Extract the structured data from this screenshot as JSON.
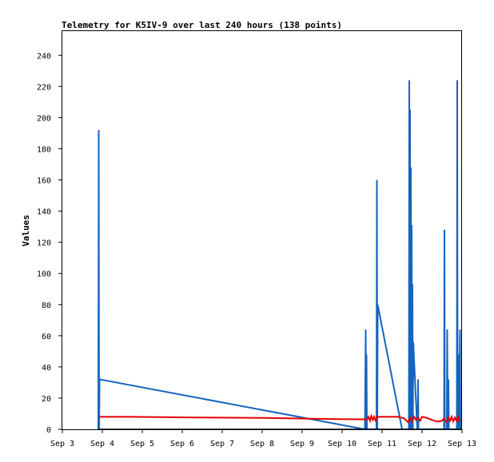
{
  "chart_data": {
    "type": "line",
    "title": "Telemetry for K5IV-9 over last 240 hours (138 points)",
    "xlabel": "",
    "ylabel": "Values",
    "xlim": [
      0,
      10
    ],
    "ylim": [
      0,
      256
    ],
    "x_ticks": [
      {
        "value": 0,
        "label": "Sep 3"
      },
      {
        "value": 1,
        "label": "Sep 4"
      },
      {
        "value": 2,
        "label": "Sep 5"
      },
      {
        "value": 3,
        "label": "Sep 6"
      },
      {
        "value": 4,
        "label": "Sep 7"
      },
      {
        "value": 5,
        "label": "Sep 8"
      },
      {
        "value": 6,
        "label": "Sep 9"
      },
      {
        "value": 7,
        "label": "Sep 10"
      },
      {
        "value": 8,
        "label": "Sep 11"
      },
      {
        "value": 9,
        "label": "Sep 12"
      },
      {
        "value": 10,
        "label": "Sep 13"
      }
    ],
    "y_ticks": [
      0,
      20,
      40,
      60,
      80,
      100,
      120,
      140,
      160,
      180,
      200,
      220,
      240
    ],
    "grid": false,
    "series": [
      {
        "color": "#1565c0",
        "x": [
          0.9,
          0.91,
          0.92,
          0.93,
          0.94,
          7.57,
          7.59,
          7.6,
          7.61,
          7.62,
          7.86,
          7.87,
          7.88,
          7.89,
          8.5,
          8.51,
          8.52,
          8.67,
          8.68,
          8.69,
          8.7,
          8.71,
          8.72,
          8.73,
          8.74,
          8.75,
          8.76,
          8.77,
          8.78,
          8.88,
          8.89,
          8.9,
          8.91,
          9.55,
          9.56,
          9.57,
          9.62,
          9.63,
          9.64,
          9.66,
          9.67,
          9.87,
          9.88,
          9.89,
          9.91,
          9.92,
          9.95,
          9.96
        ],
        "y": [
          0,
          192,
          0,
          32,
          32,
          0,
          64,
          0,
          48,
          0,
          0,
          160,
          0,
          80,
          0,
          0,
          0,
          0,
          224,
          0,
          205,
          0,
          168,
          0,
          131,
          0,
          93,
          0,
          56,
          0,
          0,
          32,
          0,
          0,
          128,
          0,
          0,
          64,
          0,
          32,
          0,
          0,
          224,
          0,
          48,
          0,
          64,
          0
        ]
      },
      {
        "color": "#e00000",
        "x": [
          0.94,
          1.7,
          3.4,
          5.1,
          6.8,
          7.57,
          7.62,
          7.66,
          7.7,
          7.73,
          7.77,
          7.8,
          7.84,
          7.87,
          8.1,
          8.4,
          8.55,
          8.65,
          8.7,
          8.75,
          8.8,
          8.85,
          8.9,
          8.95,
          9.0,
          9.1,
          9.2,
          9.3,
          9.4,
          9.5,
          9.55,
          9.62,
          9.66,
          9.7,
          9.74,
          9.78,
          9.82,
          9.86,
          9.9,
          9.93,
          9.96
        ],
        "y": [
          8,
          8,
          7.6,
          7.3,
          6.5,
          6.4,
          6,
          8,
          5.5,
          8.5,
          6,
          8,
          5.5,
          8,
          8,
          8,
          7,
          4.5,
          7.5,
          5,
          8,
          6,
          7.5,
          5.5,
          8,
          7.5,
          6.5,
          5.5,
          5,
          5.5,
          7,
          4.5,
          7.5,
          5.5,
          8,
          5,
          7.5,
          5.5,
          8,
          5.5,
          6
        ]
      },
      {
        "color": "#000000",
        "x": [
          0.9,
          9.96
        ],
        "y": [
          0,
          0
        ]
      }
    ]
  }
}
